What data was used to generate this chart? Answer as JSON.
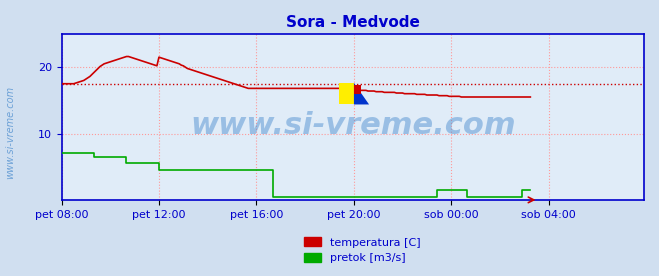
{
  "title": "Sora - Medvode",
  "title_color": "#0000cc",
  "bg_color": "#d0dff0",
  "plot_bg_color": "#e0ecf8",
  "grid_color": "#ff9999",
  "grid_style": ":",
  "axis_color": "#0000cc",
  "tick_color": "#0000cc",
  "watermark_text": "www.si-vreme.com",
  "watermark_color": "#4488cc",
  "watermark_alpha": 0.45,
  "xlim": [
    0,
    287
  ],
  "ylim": [
    0,
    25
  ],
  "yticks": [
    10,
    20
  ],
  "xtick_positions": [
    0,
    48,
    96,
    144,
    192,
    240
  ],
  "xtick_labels": [
    "pet 08:00",
    "pet 12:00",
    "pet 16:00",
    "pet 20:00",
    "sob 00:00",
    "sob 04:00"
  ],
  "avg_line_y": 17.4,
  "avg_line_color": "#cc0000",
  "avg_line_style": ":",
  "legend_items": [
    {
      "label": "temperatura [C]",
      "color": "#cc0000"
    },
    {
      "label": "pretok [m3/s]",
      "color": "#00aa00"
    }
  ],
  "temp_data": [
    17.5,
    17.5,
    17.5,
    17.5,
    17.5,
    17.5,
    17.5,
    17.6,
    17.7,
    17.8,
    17.9,
    18.0,
    18.2,
    18.4,
    18.6,
    18.9,
    19.2,
    19.5,
    19.8,
    20.1,
    20.3,
    20.5,
    20.6,
    20.7,
    20.8,
    20.9,
    21.0,
    21.1,
    21.2,
    21.3,
    21.4,
    21.5,
    21.6,
    21.6,
    21.5,
    21.4,
    21.3,
    21.2,
    21.1,
    21.0,
    20.9,
    20.8,
    20.7,
    20.6,
    20.5,
    20.4,
    20.3,
    20.2,
    21.5,
    21.4,
    21.3,
    21.2,
    21.1,
    21.0,
    20.9,
    20.8,
    20.7,
    20.6,
    20.5,
    20.3,
    20.2,
    20.0,
    19.8,
    19.7,
    19.6,
    19.5,
    19.4,
    19.3,
    19.2,
    19.1,
    19.0,
    18.9,
    18.8,
    18.7,
    18.6,
    18.5,
    18.4,
    18.3,
    18.2,
    18.1,
    18.0,
    17.9,
    17.8,
    17.7,
    17.6,
    17.5,
    17.4,
    17.3,
    17.2,
    17.1,
    17.0,
    16.9,
    16.8,
    16.8,
    16.8,
    16.8,
    16.8,
    16.8,
    16.8,
    16.8,
    16.8,
    16.8,
    16.8,
    16.8,
    16.8,
    16.8,
    16.8,
    16.8,
    16.8,
    16.8,
    16.8,
    16.8,
    16.8,
    16.8,
    16.8,
    16.8,
    16.8,
    16.8,
    16.8,
    16.8,
    16.8,
    16.8,
    16.8,
    16.8,
    16.8,
    16.8,
    16.8,
    16.8,
    16.8,
    16.8,
    16.8,
    16.8,
    16.8,
    16.8,
    16.8,
    16.8,
    16.8,
    16.8,
    16.8,
    16.8,
    16.7,
    16.7,
    16.7,
    16.7,
    16.6,
    16.6,
    16.6,
    16.5,
    16.5,
    16.5,
    16.5,
    16.4,
    16.4,
    16.4,
    16.4,
    16.3,
    16.3,
    16.3,
    16.3,
    16.2,
    16.2,
    16.2,
    16.2,
    16.2,
    16.2,
    16.1,
    16.1,
    16.1,
    16.1,
    16.0,
    16.0,
    16.0,
    16.0,
    16.0,
    16.0,
    15.9,
    15.9,
    15.9,
    15.9,
    15.9,
    15.8,
    15.8,
    15.8,
    15.8,
    15.8,
    15.8,
    15.7,
    15.7,
    15.7,
    15.7,
    15.7,
    15.6,
    15.6,
    15.6,
    15.6,
    15.6,
    15.6,
    15.5,
    15.5,
    15.5,
    15.5,
    15.5,
    15.5,
    15.5,
    15.5,
    15.5,
    15.5,
    15.5,
    15.5,
    15.5,
    15.5,
    15.5,
    15.5,
    15.5,
    15.5,
    15.5,
    15.5,
    15.5,
    15.5,
    15.5,
    15.5,
    15.5,
    15.5,
    15.5,
    15.5,
    15.5,
    15.5,
    15.5,
    15.5,
    15.5,
    15.5,
    15.5
  ],
  "flow_data": [
    7.0,
    7.0,
    7.0,
    7.0,
    7.0,
    7.0,
    7.0,
    7.0,
    7.0,
    7.0,
    7.0,
    7.0,
    7.0,
    7.0,
    7.0,
    7.0,
    6.5,
    6.5,
    6.5,
    6.5,
    6.5,
    6.5,
    6.5,
    6.5,
    6.5,
    6.5,
    6.5,
    6.5,
    6.5,
    6.5,
    6.5,
    6.5,
    5.5,
    5.5,
    5.5,
    5.5,
    5.5,
    5.5,
    5.5,
    5.5,
    5.5,
    5.5,
    5.5,
    5.5,
    5.5,
    5.5,
    5.5,
    5.5,
    4.5,
    4.5,
    4.5,
    4.5,
    4.5,
    4.5,
    4.5,
    4.5,
    4.5,
    4.5,
    4.5,
    4.5,
    4.5,
    4.5,
    4.5,
    4.5,
    4.5,
    4.5,
    4.5,
    4.5,
    4.5,
    4.5,
    4.5,
    4.5,
    4.5,
    4.5,
    4.5,
    4.5,
    4.5,
    4.5,
    4.5,
    4.5,
    4.5,
    4.5,
    4.5,
    4.5,
    4.5,
    4.5,
    4.5,
    4.5,
    4.5,
    4.5,
    4.5,
    4.5,
    4.5,
    4.5,
    4.5,
    4.5,
    4.5,
    4.5,
    4.5,
    4.5,
    4.5,
    4.5,
    4.5,
    4.5,
    0.5,
    0.5,
    0.5,
    0.5,
    0.5,
    0.5,
    0.5,
    0.5,
    0.5,
    0.5,
    0.5,
    0.5,
    0.5,
    0.5,
    0.5,
    0.5,
    0.5,
    0.5,
    0.5,
    0.5,
    0.5,
    0.5,
    0.5,
    0.5,
    0.5,
    0.5,
    0.5,
    0.5,
    0.5,
    0.5,
    0.5,
    0.5,
    0.5,
    0.5,
    0.5,
    0.5,
    0.5,
    0.5,
    0.5,
    0.5,
    0.5,
    0.5,
    0.5,
    0.5,
    0.5,
    0.5,
    0.5,
    0.5,
    0.5,
    0.5,
    0.5,
    0.5,
    0.5,
    0.5,
    0.5,
    0.5,
    0.5,
    0.5,
    0.5,
    0.5,
    0.5,
    0.5,
    0.5,
    0.5,
    0.5,
    0.5,
    0.5,
    0.5,
    0.5,
    0.5,
    0.5,
    0.5,
    0.5,
    0.5,
    0.5,
    0.5,
    0.5,
    0.5,
    0.5,
    0.5,
    0.5,
    1.5,
    1.5,
    1.5,
    1.5,
    1.5,
    1.5,
    1.5,
    1.5,
    1.5,
    1.5,
    1.5,
    1.5,
    1.5,
    1.5,
    1.5,
    0.5,
    0.5,
    0.5,
    0.5,
    0.5,
    0.5,
    0.5,
    0.5,
    0.5,
    0.5,
    0.5,
    0.5,
    0.5,
    0.5,
    0.5,
    0.5,
    0.5,
    0.5,
    0.5,
    0.5,
    0.5,
    0.5,
    0.5,
    0.5,
    0.5,
    0.5,
    0.5,
    1.5,
    1.5,
    1.5,
    1.5,
    1.5
  ]
}
